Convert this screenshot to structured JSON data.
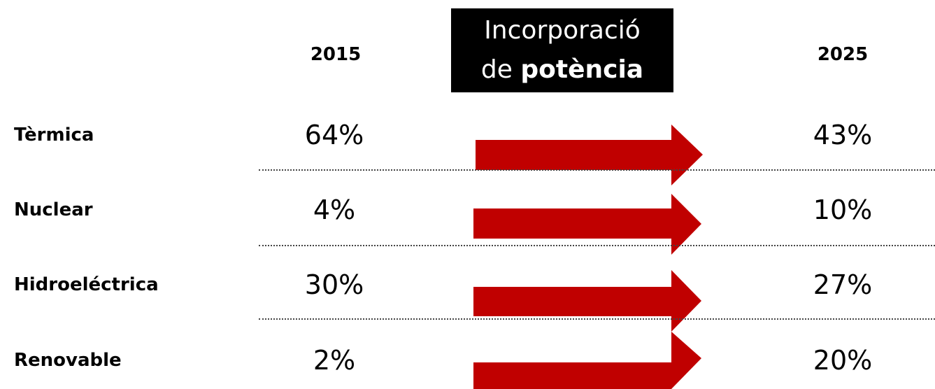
{
  "header": {
    "col1": "2015",
    "col2": "2025",
    "box": {
      "line1": "Incorporació",
      "line2_normal": "de",
      "line2_bold": "potència"
    }
  },
  "table": {
    "rows": [
      [
        "Tèrmica",
        "64%",
        "43%"
      ],
      [
        "Nuclear",
        "4%",
        "10%"
      ],
      [
        "Hidroeléctrica",
        "30%",
        "27%"
      ],
      [
        "Renovable",
        "2%",
        "20%"
      ]
    ]
  }
}
